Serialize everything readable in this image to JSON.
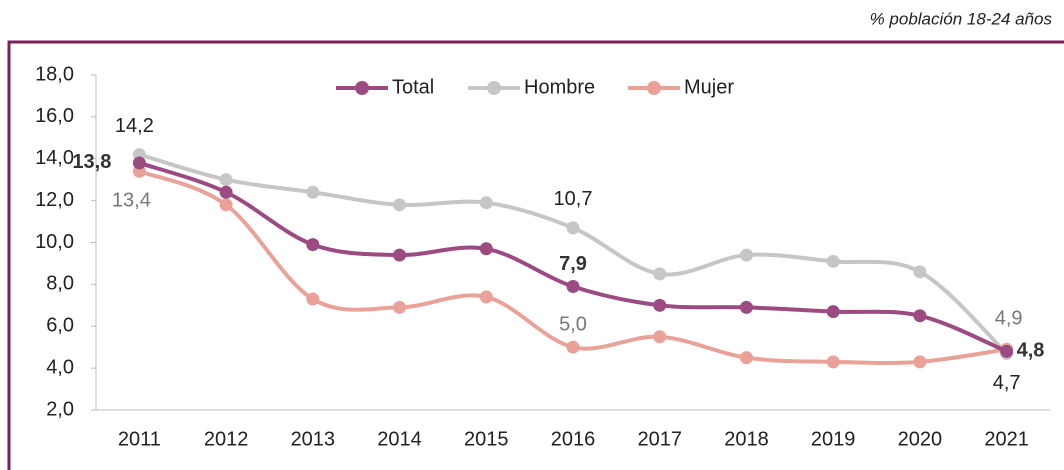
{
  "chart_data": {
    "type": "line",
    "subtitle": "% población 18-24 años",
    "categories": [
      "2011",
      "2012",
      "2013",
      "2014",
      "2015",
      "2016",
      "2017",
      "2018",
      "2019",
      "2020",
      "2021"
    ],
    "series": [
      {
        "name": "Total",
        "color": "#9c4a82",
        "values": [
          13.8,
          12.4,
          9.9,
          9.4,
          9.7,
          7.9,
          7.0,
          6.9,
          6.7,
          6.5,
          4.8
        ],
        "value_labels": [
          "13,8",
          null,
          null,
          null,
          null,
          "7,9",
          null,
          null,
          null,
          null,
          "4,8"
        ]
      },
      {
        "name": "Hombre",
        "color": "#c6c6c6",
        "values": [
          14.2,
          13.0,
          12.4,
          11.8,
          11.9,
          10.7,
          8.5,
          9.4,
          9.1,
          8.6,
          4.7
        ],
        "value_labels": [
          "14,2",
          null,
          null,
          null,
          null,
          "10,7",
          null,
          null,
          null,
          null,
          "4,7"
        ]
      },
      {
        "name": "Mujer",
        "color": "#e9a198",
        "values": [
          13.4,
          11.8,
          7.3,
          6.9,
          7.4,
          5.0,
          5.5,
          4.5,
          4.3,
          4.3,
          4.9
        ],
        "value_labels": [
          "13,4",
          null,
          null,
          null,
          null,
          "5,0",
          null,
          null,
          null,
          null,
          "4,9"
        ]
      }
    ],
    "ylim": [
      2,
      18
    ],
    "yticks": [
      {
        "value": 2,
        "label": "2,0"
      },
      {
        "value": 4,
        "label": "4,0"
      },
      {
        "value": 6,
        "label": "6,0"
      },
      {
        "value": 8,
        "label": "8,0"
      },
      {
        "value": 10,
        "label": "10,0"
      },
      {
        "value": 12,
        "label": "12,0"
      },
      {
        "value": 14,
        "label": "14,0"
      },
      {
        "value": 16,
        "label": "16,0"
      },
      {
        "value": 18,
        "label": "18,0"
      }
    ],
    "legend": "top"
  }
}
